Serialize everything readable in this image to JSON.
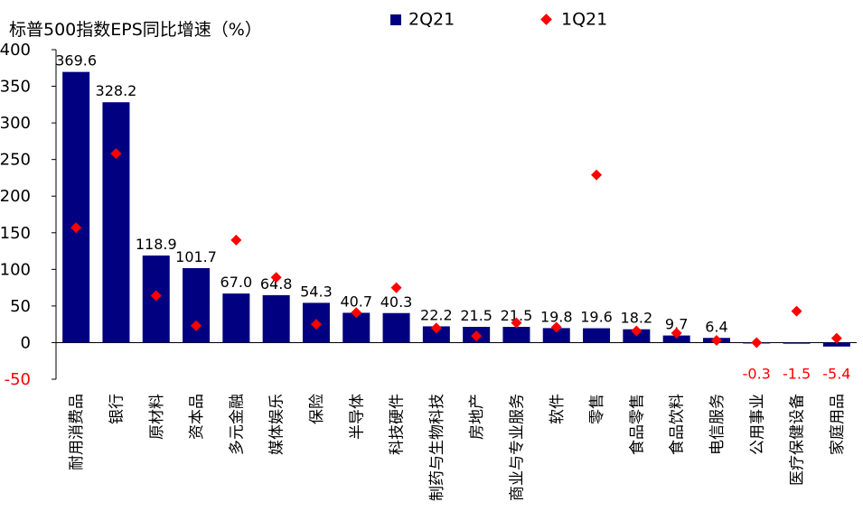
{
  "chart_data": {
    "type": "bar",
    "title": "标普500指数EPS同比增速（%）",
    "xlabel": "",
    "ylabel": "",
    "ylim": [
      -50,
      400
    ],
    "yticks": [
      -50,
      0,
      50,
      100,
      150,
      200,
      250,
      300,
      350,
      400
    ],
    "legend_position": "top",
    "grid": false,
    "categories": [
      "耐用消费品",
      "银行",
      "原材料",
      "资本品",
      "多元金融",
      "媒体娱乐",
      "保险",
      "半导体",
      "科技硬件",
      "制药与生物科技",
      "房地产",
      "商业与专业服务",
      "软件",
      "零售",
      "食品零售",
      "食品饮料",
      "电信服务",
      "公用事业",
      "医疗保健设备",
      "家庭用品"
    ],
    "series": [
      {
        "name": "2Q21",
        "mark": "bar",
        "color": "#000080",
        "values": [
          369.6,
          328.2,
          118.9,
          101.7,
          67.0,
          64.8,
          54.3,
          40.7,
          40.3,
          22.2,
          21.5,
          21.5,
          19.8,
          19.6,
          18.2,
          9.7,
          6.4,
          -0.3,
          -1.5,
          -5.4
        ],
        "labels": [
          "369.6",
          "328.2",
          "118.9",
          "101.7",
          "67.0",
          "64.8",
          "54.3",
          "40.7",
          "40.3",
          "22.2",
          "21.5",
          "21.5",
          "19.8",
          "19.6",
          "18.2",
          "9.7",
          "6.4",
          "-0.3",
          "-1.5",
          "-5.4"
        ]
      },
      {
        "name": "1Q21",
        "mark": "diamond",
        "color": "#ff0000",
        "values": [
          157,
          258,
          64,
          23,
          140,
          89,
          25,
          41,
          75,
          20,
          9,
          27,
          21,
          229,
          16,
          13,
          3,
          0,
          43,
          6
        ]
      }
    ],
    "negative_label_color": "#ff0000",
    "axis_negative_label_color": "#ff0000"
  }
}
